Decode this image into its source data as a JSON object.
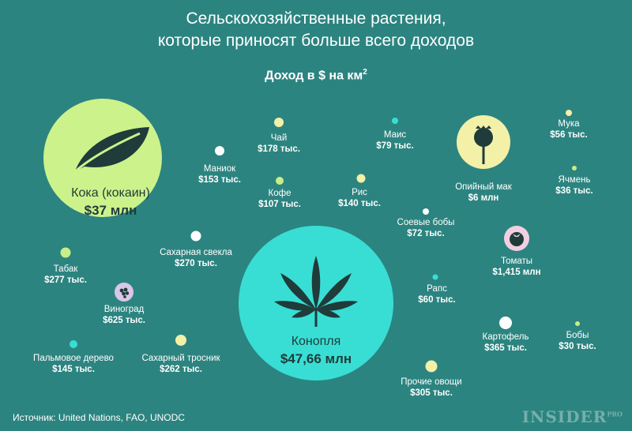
{
  "header": {
    "title_line1": "Сельскохозяйственные растения,",
    "title_line2": "которые приносят больше всего доходов",
    "subtitle": "Доход в $ на км",
    "subtitle_sup": "2"
  },
  "colors": {
    "background": "#2c8480",
    "coca": "#ccf28c",
    "cannabis": "#38ded4",
    "pale_yellow": "#f3f0a8",
    "white": "#ffffff",
    "teal": "#38ded4",
    "lime": "#c7ef86",
    "pink": "#f2cfe0",
    "lavender": "#d9c6e8"
  },
  "crops": [
    {
      "name": "Кока (кокаин)",
      "value": "$37 млн",
      "icon": "leaf-icon"
    },
    {
      "name": "Конопля",
      "value": "$47,66 млн",
      "icon": "cannabis-leaf-icon"
    },
    {
      "name": "Чай",
      "value": "$178 тыс."
    },
    {
      "name": "Маис",
      "value": "$79 тыс."
    },
    {
      "name": "Мука",
      "value": "$56 тыс."
    },
    {
      "name": "Маниок",
      "value": "$153 тыс."
    },
    {
      "name": "Опийный мак",
      "value": "$6 млн",
      "icon": "poppy-icon"
    },
    {
      "name": "Ячмень",
      "value": "$36 тыс."
    },
    {
      "name": "Кофе",
      "value": "$107 тыс."
    },
    {
      "name": "Рис",
      "value": "$140 тыс."
    },
    {
      "name": "Соевые бобы",
      "value": "$72 тыс."
    },
    {
      "name": "Сахарная свекла",
      "value": "$270 тыс."
    },
    {
      "name": "Томаты",
      "value": "$1,415 млн",
      "icon": "tomato-icon"
    },
    {
      "name": "Табак",
      "value": "$277 тыс."
    },
    {
      "name": "Рапс",
      "value": "$60 тыс."
    },
    {
      "name": "Виноград",
      "value": "$625 тыс.",
      "icon": "grapes-icon"
    },
    {
      "name": "Картофель",
      "value": "$365 тыс."
    },
    {
      "name": "Бобы",
      "value": "$30 тыс."
    },
    {
      "name": "Пальмовое дерево",
      "value": "$145 тыс."
    },
    {
      "name": "Сахарный тросник",
      "value": "$262 тыс."
    },
    {
      "name": "Прочие овощи",
      "value": "$305 тыс."
    }
  ],
  "footer": {
    "source": "Источник: United Nations, FAO, UNODC",
    "brand": "INSIDER",
    "brand_sup": "PRO"
  }
}
